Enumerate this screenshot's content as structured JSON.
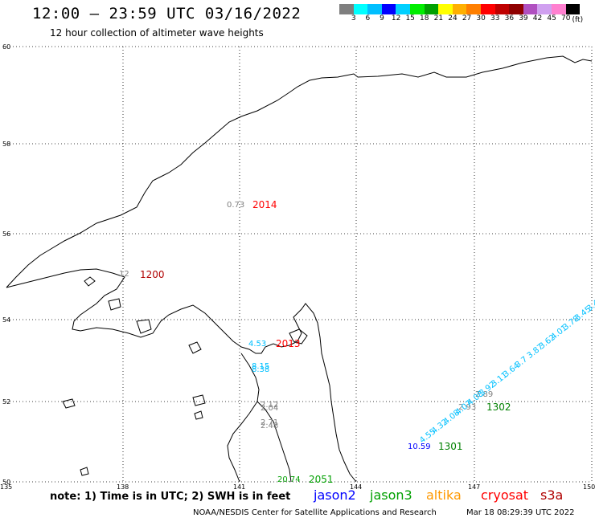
{
  "header": {
    "title": "12:00 – 23:59 UTC 03/16/2022",
    "subtitle": "12 hour collection of altimeter wave heights"
  },
  "scale": {
    "unit": "(ft)",
    "colors": [
      "#7f7f7f",
      "#00ffff",
      "#00bfff",
      "#0000ff",
      "#00d0ff",
      "#00ee00",
      "#00a000",
      "#ffff00",
      "#ffb000",
      "#ff7f00",
      "#ff0000",
      "#bf0000",
      "#8f0000",
      "#b050c0",
      "#d0a0f0",
      "#ff80d0",
      "#000000"
    ],
    "labels": [
      "3",
      "6",
      "9",
      "12",
      "15",
      "18",
      "21",
      "24",
      "27",
      "30",
      "33",
      "36",
      "39",
      "42",
      "45",
      "70"
    ]
  },
  "axes": {
    "lat_labels": [
      "60",
      "58",
      "56",
      "54",
      "52",
      "50"
    ],
    "lon_labels": [
      "135",
      "138",
      "141",
      "144",
      "147",
      "150"
    ]
  },
  "observations": [
    {
      "value": "0.73",
      "color": "#808080"
    },
    {
      "value": "12",
      "color": "#808080"
    },
    {
      "value": "4.53",
      "color": "#00c0ff"
    },
    {
      "value": "8.15",
      "color": "#00c0ff"
    },
    {
      "value": "8.38",
      "color": "#00c0ff"
    },
    {
      "value": "2.12",
      "color": "#808080"
    },
    {
      "value": "2.04",
      "color": "#808080"
    },
    {
      "value": "2.71",
      "color": "#808080"
    },
    {
      "value": "2.48",
      "color": "#808080"
    },
    {
      "value": "20.74",
      "color": "#00a000"
    },
    {
      "value": "10.59",
      "color": "#0000ff"
    },
    {
      "value": "2.93",
      "color": "#808080"
    },
    {
      "value": "2.89",
      "color": "#808080"
    }
  ],
  "pass_labels": [
    {
      "text": "2014",
      "color": "#ff0000"
    },
    {
      "text": "1200",
      "color": "#b00000"
    },
    {
      "text": "2013",
      "color": "#ff0000"
    },
    {
      "text": "2051",
      "color": "#00a000"
    },
    {
      "text": "1301",
      "color": "#008000"
    },
    {
      "text": "1302",
      "color": "#008000"
    }
  ],
  "track_values": [
    "4.55",
    "4.32",
    "4.08",
    "4.07",
    "4.08",
    "3.92",
    "3.11",
    "3.64",
    "3.7",
    "3.87",
    "3.62",
    "4.01",
    "3.78",
    "3.45",
    "3.4"
  ],
  "note": "note:  1) Time is in UTC;  2) SWH is in feet",
  "legend": [
    {
      "name": "jason2",
      "color": "#0000ff"
    },
    {
      "name": "jason3",
      "color": "#00a000"
    },
    {
      "name": "altika",
      "color": "#ff9900"
    },
    {
      "name": "cryosat",
      "color": "#ff0000"
    },
    {
      "name": "s3a",
      "color": "#b00000"
    }
  ],
  "footer": {
    "credit": "NOAA/NESDIS Center for Satellite Applications and Research",
    "timestamp": "Mar 18 08:29:39 UTC 2022"
  }
}
